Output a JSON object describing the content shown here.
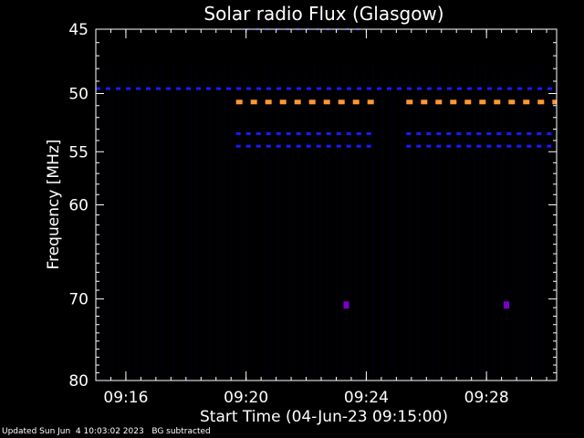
{
  "chart_data": {
    "type": "heatmap",
    "title": "Solar radio Flux (Glasgow)",
    "xlabel": "Start Time (04-Jun-23 09:15:00)",
    "ylabel": "Frequency [MHz]",
    "x_range": [
      "09:15:00",
      "09:30:20"
    ],
    "x_ticks": [
      "09:16",
      "09:20",
      "09:24",
      "09:28"
    ],
    "y_range": [
      45,
      80
    ],
    "y_scale": "log",
    "y_ticks": [
      45,
      50,
      55,
      60,
      70,
      80
    ],
    "y_axis_inverted": true,
    "colors": {
      "background": "#000000",
      "axes": "#ffffff",
      "rfi_blue": "#1a1aff",
      "rfi_dim": "#0a0a8c",
      "rfi_orange": "#ff9933",
      "rfi_purple": "#7a00c8"
    },
    "bands": [
      {
        "freq_mhz": 45.0,
        "start": "09:20:00",
        "end": "09:24:00",
        "color": "rfi_dim"
      },
      {
        "freq_mhz": 49.6,
        "start": "09:15:00",
        "end": "09:30:20",
        "color": "rfi_blue"
      },
      {
        "freq_mhz": 50.7,
        "start": "09:19:40",
        "end": "09:24:15",
        "color": "rfi_orange"
      },
      {
        "freq_mhz": 50.7,
        "start": "09:25:20",
        "end": "09:30:20",
        "color": "rfi_orange"
      },
      {
        "freq_mhz": 53.4,
        "start": "09:19:40",
        "end": "09:24:15",
        "color": "rfi_blue"
      },
      {
        "freq_mhz": 53.4,
        "start": "09:25:20",
        "end": "09:30:20",
        "color": "rfi_blue"
      },
      {
        "freq_mhz": 54.5,
        "start": "09:19:40",
        "end": "09:24:15",
        "color": "rfi_blue"
      },
      {
        "freq_mhz": 54.5,
        "start": "09:25:20",
        "end": "09:30:20",
        "color": "rfi_blue"
      }
    ],
    "spots": [
      {
        "freq_mhz": 70.7,
        "time": "09:23:20",
        "color": "rfi_purple"
      },
      {
        "freq_mhz": 70.7,
        "time": "09:28:40",
        "color": "rfi_purple"
      }
    ]
  },
  "footer": {
    "updated": "Updated Sun Jun  4 10:03:02 2023",
    "note": "BG subtracted"
  }
}
